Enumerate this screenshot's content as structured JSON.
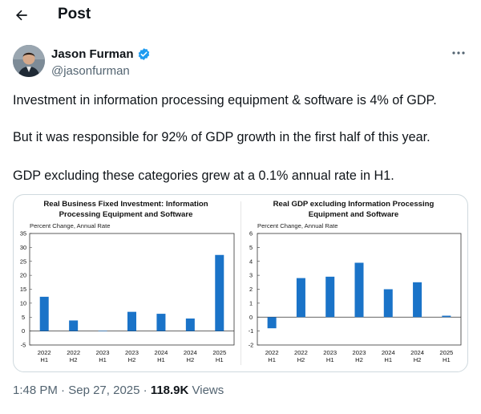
{
  "header": {
    "title": "Post"
  },
  "author": {
    "name": "Jason Furman",
    "handle": "@jasonfurman"
  },
  "tweet": {
    "paragraphs": [
      "Investment in information processing equipment & software is 4% of GDP.",
      "But it was responsible for 92% of GDP growth in the first half of this year.",
      "GDP excluding these categories grew at a 0.1% annual rate in H1."
    ]
  },
  "meta": {
    "time": "1:48 PM",
    "separator": " · ",
    "date": "Sep 27, 2025",
    "views_count": "118.9K",
    "views_label": " Views"
  },
  "colors": {
    "bar": "#1a73c8",
    "verified": "#1d9bf0"
  },
  "chart_data": [
    {
      "type": "bar",
      "title": "Real Business Fixed Investment: Information Processing Equipment and Software",
      "ylabel": "Percent Change, Annual Rate",
      "ylim": [
        -5,
        35
      ],
      "yticks": [
        -5,
        0,
        5,
        10,
        15,
        20,
        25,
        30,
        35
      ],
      "categories": [
        [
          "2022",
          "H1"
        ],
        [
          "2022",
          "H2"
        ],
        [
          "2023",
          "H1"
        ],
        [
          "2023",
          "H2"
        ],
        [
          "2024",
          "H1"
        ],
        [
          "2024",
          "H2"
        ],
        [
          "2025",
          "H1"
        ]
      ],
      "values": [
        12.3,
        3.8,
        0.1,
        6.9,
        6.2,
        4.5,
        27.3
      ]
    },
    {
      "type": "bar",
      "title": "Real GDP excluding Information Processing Equipment and Software",
      "ylabel": "Percent Change, Annual Rate",
      "ylim": [
        -2,
        6
      ],
      "yticks": [
        -2,
        -1,
        0,
        1,
        2,
        3,
        4,
        5,
        6
      ],
      "categories": [
        [
          "2022",
          "H1"
        ],
        [
          "2022",
          "H2"
        ],
        [
          "2023",
          "H1"
        ],
        [
          "2023",
          "H2"
        ],
        [
          "2024",
          "H1"
        ],
        [
          "2024",
          "H2"
        ],
        [
          "2025",
          "H1"
        ]
      ],
      "values": [
        -0.8,
        2.8,
        2.9,
        3.9,
        2.0,
        2.5,
        0.1
      ]
    }
  ]
}
